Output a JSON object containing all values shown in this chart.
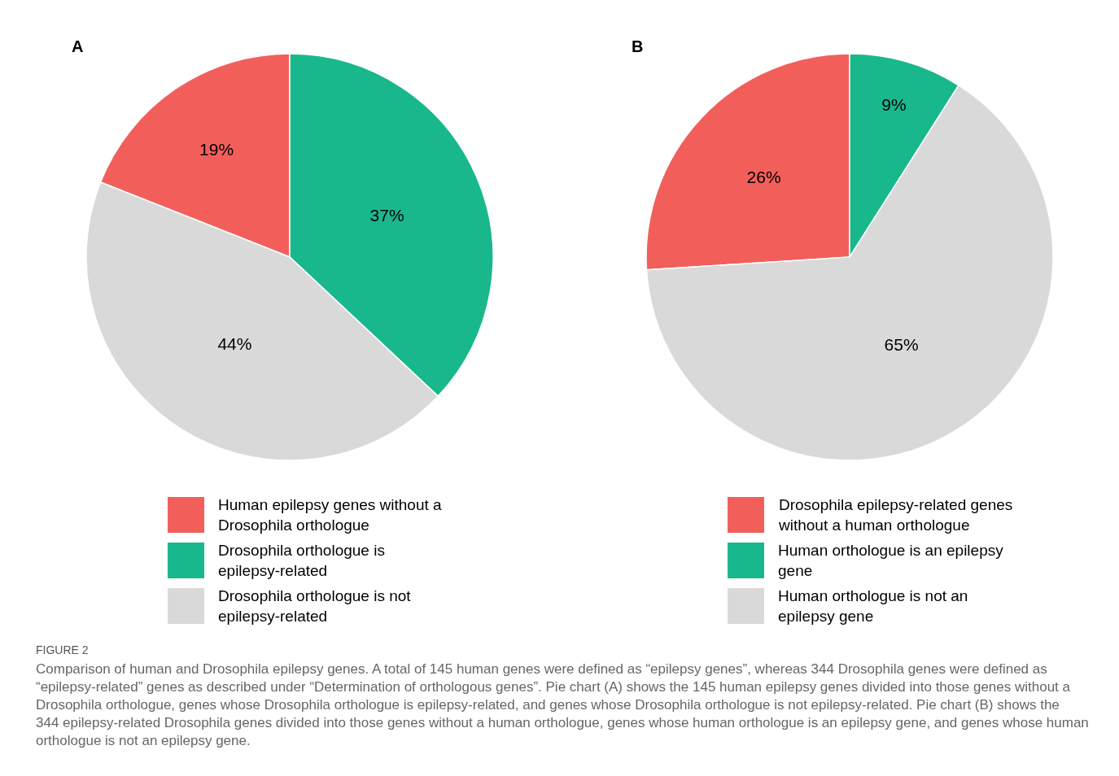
{
  "chart_data": [
    {
      "type": "pie",
      "title": "A",
      "categories": [
        "Human epilepsy genes without a Drosophila orthologue",
        "Drosophila orthologue is epilepsy-related",
        "Drosophila orthologue is not epilepsy-related"
      ],
      "values": [
        19,
        37,
        44
      ],
      "colors": [
        "#f25f5a",
        "#19b88c",
        "#d9d9d9"
      ],
      "value_labels": [
        "19%",
        "37%",
        "44%"
      ],
      "legend": "bottom"
    },
    {
      "type": "pie",
      "title": "B",
      "categories": [
        "Drosophila epilepsy-related genes without a human orthologue",
        "Human orthologue is an epilepsy gene",
        "Human orthologue is not an epilepsy gene"
      ],
      "values": [
        26,
        9,
        65
      ],
      "colors": [
        "#f25f5a",
        "#19b88c",
        "#d9d9d9"
      ],
      "value_labels": [
        "26%",
        "9%",
        "65%"
      ],
      "legend": "bottom",
      "annotations": [
        "FIGURE 2",
        "Comparison of human and Drosophila epilepsy genes. A total of 145 human genes were defined as “epilepsy genes”, whereas 344 Drosophila genes were defined as “epilepsy-related” genes as described under “Determination of orthologous genes”. Pie chart (A) shows the 145 human epilepsy genes divided into those genes without a Drosophila orthologue, genes whose Drosophila orthologue is epilepsy-related, and genes whose Drosophila orthologue is not epilepsy-related. Pie chart (B) shows the 344 epilepsy-related Drosophila genes divided into those genes without a human orthologue, genes whose human orthologue is an epilepsy gene, and genes whose human orthologue is not an epilepsy gene."
      ]
    }
  ]
}
